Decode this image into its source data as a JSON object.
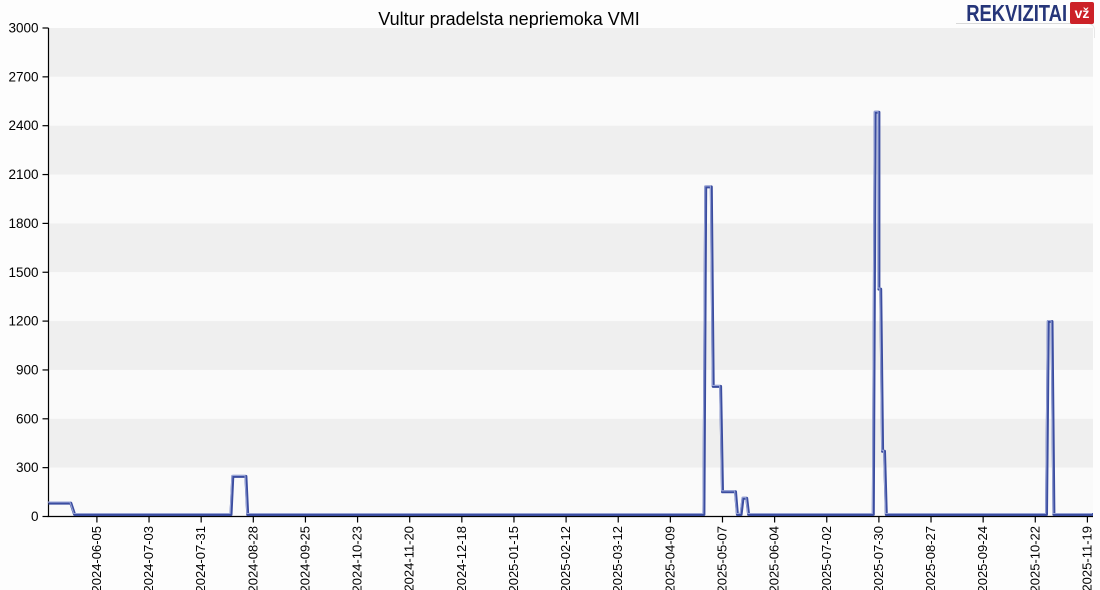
{
  "header": {
    "logo_text": "REKVIZITAI",
    "logo_badge": "vž",
    "logo_color": "#253579",
    "logo_badge_color": "#cc2127"
  },
  "chart_data": {
    "type": "line",
    "title": "Vultur pradelsta nepriemoka VMI",
    "xlabel": "",
    "ylabel": "",
    "ylim": [
      0,
      3000
    ],
    "y_ticks": [
      0,
      300,
      600,
      900,
      1200,
      1500,
      1800,
      2100,
      2400,
      2700,
      3000
    ],
    "x_range": [
      "2024-05-10",
      "2025-11-22"
    ],
    "x_tick_labels": [
      "2024-06-05",
      "2024-07-03",
      "2024-07-31",
      "2024-08-28",
      "2024-09-25",
      "2024-10-23",
      "2024-11-20",
      "2024-12-18",
      "2025-01-15",
      "2025-02-12",
      "2025-03-12",
      "2025-04-09",
      "2025-05-07",
      "2025-06-04",
      "2025-07-02",
      "2025-07-30",
      "2025-08-27",
      "2025-09-24",
      "2025-10-22",
      "2025-11-19"
    ],
    "grid": "horizontal-bands",
    "legend": "none",
    "series": [
      {
        "name": "nepriemoka",
        "line_color": "#3b4da0",
        "line_highlight_color": "#97a3d6",
        "points": [
          [
            "2024-05-10",
            70
          ],
          [
            "2024-05-22",
            70
          ],
          [
            "2024-05-24",
            0
          ],
          [
            "2024-08-16",
            0
          ],
          [
            "2024-08-17",
            235
          ],
          [
            "2024-08-24",
            235
          ],
          [
            "2024-08-25",
            0
          ],
          [
            "2025-04-27",
            0
          ],
          [
            "2025-04-28",
            2020
          ],
          [
            "2025-05-01",
            2020
          ],
          [
            "2025-05-02",
            790
          ],
          [
            "2025-05-06",
            790
          ],
          [
            "2025-05-07",
            140
          ],
          [
            "2025-05-14",
            140
          ],
          [
            "2025-05-15",
            0
          ],
          [
            "2025-05-17",
            0
          ],
          [
            "2025-05-18",
            100
          ],
          [
            "2025-05-20",
            100
          ],
          [
            "2025-05-21",
            0
          ],
          [
            "2025-07-27",
            0
          ],
          [
            "2025-07-28",
            2480
          ],
          [
            "2025-07-30",
            2480
          ],
          [
            "2025-07-30",
            1390
          ],
          [
            "2025-07-31",
            1390
          ],
          [
            "2025-08-01",
            390
          ],
          [
            "2025-08-02",
            390
          ],
          [
            "2025-08-03",
            0
          ],
          [
            "2025-10-28",
            0
          ],
          [
            "2025-10-29",
            1190
          ],
          [
            "2025-10-31",
            1190
          ],
          [
            "2025-11-01",
            0
          ],
          [
            "2025-11-22",
            0
          ]
        ]
      }
    ],
    "colors": {
      "band_dark": "#efefef",
      "band_light": "#fafafa",
      "axis": "#000000",
      "tick_label": "#000000"
    }
  }
}
